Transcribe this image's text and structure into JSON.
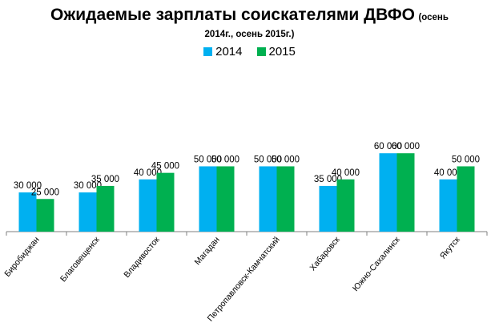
{
  "chart_data": {
    "type": "bar",
    "title": "Ожидаемые зарплаты соискателями ДВФО",
    "subtitle_part1": "(осень",
    "subtitle_part2": "2014г., осень 2015г.)",
    "categories": [
      "Биробиджан",
      "Благовещенск",
      "Владивосток",
      "Магадан",
      "Петропавловск-Камчатский",
      "Хабаровск",
      "Южно-Сахалинск",
      "Якутск"
    ],
    "series": [
      {
        "name": "2014",
        "color": "#00b0f0",
        "values": [
          30000,
          30000,
          40000,
          50000,
          50000,
          35000,
          60000,
          40000
        ],
        "labels": [
          "30 000",
          "30 000",
          "40 000",
          "50 000",
          "50 000",
          "35 000",
          "60 000",
          "40 000"
        ]
      },
      {
        "name": "2015",
        "color": "#00b050",
        "values": [
          25000,
          35000,
          45000,
          50000,
          50000,
          40000,
          60000,
          50000
        ],
        "labels": [
          "25 000",
          "35 000",
          "45 000",
          "50 000",
          "50 000",
          "40 000",
          "60 000",
          "50 000"
        ]
      }
    ],
    "ylim": [
      0,
      60000
    ],
    "grid": false,
    "legend_position": "top"
  }
}
